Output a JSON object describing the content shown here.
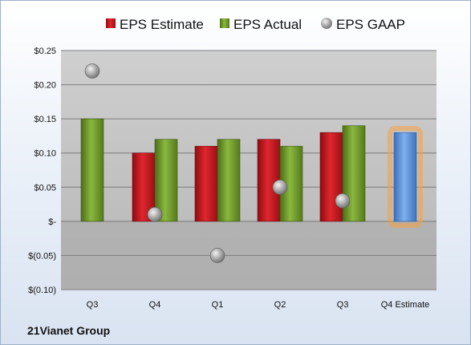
{
  "company": "21Vianet Group",
  "colors": {
    "estimate": "#c8161d",
    "actual": "#6f9a2a",
    "gaap": "#9a9a9a",
    "forecast": "#5b8fd6",
    "forecast_glow": "#f5a040"
  },
  "chart_data": {
    "type": "bar",
    "title": "",
    "xlabel": "",
    "ylabel": "",
    "ylim": [
      -0.1,
      0.25
    ],
    "yticks": [
      0.25,
      0.2,
      0.15,
      0.1,
      0.05,
      0.0,
      -0.05,
      -0.1
    ],
    "ytick_labels": [
      "$0.25",
      "$0.20",
      "$0.15",
      "$0.10",
      "$0.05",
      "$-",
      "$(0.05)",
      "$(0.10)"
    ],
    "grid": true,
    "legend_position": "top",
    "categories": [
      "Q3",
      "Q4",
      "Q1",
      "Q2",
      "Q3",
      "Q4 Estimate"
    ],
    "series": [
      {
        "name": "EPS Estimate",
        "kind": "bar",
        "values": [
          null,
          0.1,
          0.11,
          0.12,
          0.13,
          0.13
        ]
      },
      {
        "name": "EPS Actual",
        "kind": "bar",
        "values": [
          0.15,
          0.12,
          0.12,
          0.11,
          0.14,
          null
        ]
      },
      {
        "name": "EPS GAAP",
        "kind": "marker",
        "values": [
          0.22,
          0.01,
          -0.05,
          0.05,
          0.03,
          null
        ]
      }
    ]
  }
}
